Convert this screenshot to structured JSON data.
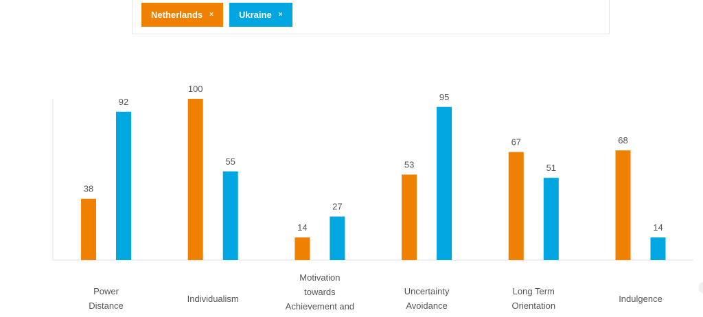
{
  "filter": {
    "tags": [
      {
        "label": "Netherlands",
        "close_icon": "×",
        "color": "#F08000"
      },
      {
        "label": "Ukraine",
        "close_icon": "×",
        "color": "#00A6DF"
      }
    ]
  },
  "chart_data": {
    "type": "bar",
    "categories": [
      [
        "Power",
        "Distance"
      ],
      [
        "Individualism"
      ],
      [
        "Motivation",
        "towards",
        "Achievement and"
      ],
      [
        "Uncertainty",
        "Avoidance"
      ],
      [
        "Long Term",
        "Orientation"
      ],
      [
        "Indulgence"
      ]
    ],
    "series": [
      {
        "name": "Netherlands",
        "color": "#F08000",
        "values": [
          38,
          100,
          14,
          53,
          67,
          68
        ]
      },
      {
        "name": "Ukraine",
        "color": "#00A6DF",
        "values": [
          92,
          55,
          27,
          95,
          51,
          14
        ]
      }
    ],
    "ylim": [
      0,
      100
    ],
    "grid": false,
    "data_labels": true
  }
}
